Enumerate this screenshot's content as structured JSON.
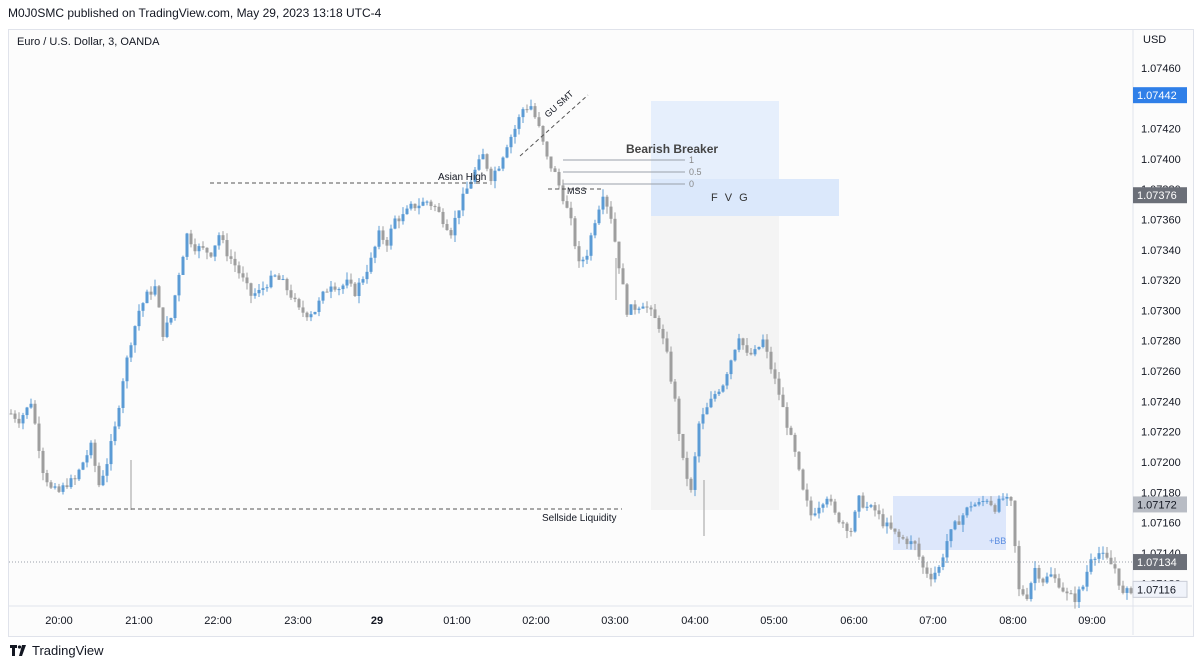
{
  "header": {
    "published": "M0J0SMC published on TradingView.com, May 29, 2023 13:18 UTC-4"
  },
  "symbol": "Euro / U.S. Dollar, 3, OANDA",
  "footer": {
    "brand": "TradingView"
  },
  "colors": {
    "up": "#5b9bd5",
    "down": "#9e9e9e",
    "badge_blue": "#2f7fe8",
    "badge_dark": "#6b6f78",
    "badge_gray": "#b8bcc4",
    "badge_light": "#f0f3fa"
  },
  "chart_data": {
    "type": "candlestick",
    "title": "Euro / U.S. Dollar, 3, OANDA",
    "currency": "USD",
    "xlabel": "",
    "ylabel": "USD",
    "ylim": [
      1.07105,
      1.07485
    ],
    "x_ticks": [
      "20:00",
      "21:00",
      "22:00",
      "23:00",
      "29",
      "01:00",
      "02:00",
      "03:00",
      "04:00",
      "05:00",
      "06:00",
      "07:00",
      "08:00",
      "09:00"
    ],
    "y_ticks": [
      "1.07460",
      "1.07420",
      "1.07400",
      "1.07380",
      "1.07360",
      "1.07340",
      "1.07320",
      "1.07300",
      "1.07280",
      "1.07260",
      "1.07240",
      "1.07220",
      "1.07200",
      "1.07180",
      "1.07160",
      "1.07140",
      "1.07120"
    ],
    "price_badges": [
      {
        "label": "1.07442",
        "value": 1.07442,
        "style": "blue"
      },
      {
        "label": "1.07376",
        "value": 1.07376,
        "style": "dark"
      },
      {
        "label": "1.07172",
        "value": 1.07172,
        "style": "gray"
      },
      {
        "label": "1.07134",
        "value": 1.07134,
        "style": "dark"
      },
      {
        "label": "1.07116",
        "value": 1.07116,
        "style": "light"
      }
    ],
    "series": [
      {
        "close_path": [
          [
            0,
            1.07232
          ],
          [
            2,
            1.07228
          ],
          [
            4,
            1.07235
          ],
          [
            5,
            1.0724
          ],
          [
            6,
            1.07225
          ],
          [
            8,
            1.07195
          ],
          [
            10,
            1.07182
          ],
          [
            12,
            1.0718
          ],
          [
            14,
            1.07186
          ],
          [
            16,
            1.07188
          ],
          [
            18,
            1.072
          ],
          [
            20,
            1.0721
          ],
          [
            22,
            1.07185
          ],
          [
            24,
            1.072
          ],
          [
            26,
            1.07222
          ],
          [
            28,
            1.07255
          ],
          [
            30,
            1.0728
          ],
          [
            32,
            1.073
          ],
          [
            34,
            1.0731
          ],
          [
            36,
            1.07315
          ],
          [
            38,
            1.07285
          ],
          [
            40,
            1.07295
          ],
          [
            42,
            1.07325
          ],
          [
            44,
            1.0735
          ],
          [
            46,
            1.07342
          ],
          [
            48,
            1.0734
          ],
          [
            50,
            1.07338
          ],
          [
            52,
            1.0735
          ],
          [
            54,
            1.07338
          ],
          [
            56,
            1.0733
          ],
          [
            58,
            1.0732
          ],
          [
            60,
            1.0731
          ],
          [
            62,
            1.07312
          ],
          [
            64,
            1.07318
          ],
          [
            66,
            1.07322
          ],
          [
            68,
            1.07318
          ],
          [
            70,
            1.0731
          ],
          [
            72,
            1.073
          ],
          [
            74,
            1.07298
          ],
          [
            76,
            1.073
          ],
          [
            78,
            1.0731
          ],
          [
            80,
            1.07318
          ],
          [
            82,
            1.07315
          ],
          [
            84,
            1.07318
          ],
          [
            86,
            1.07312
          ],
          [
            88,
            1.07322
          ],
          [
            90,
            1.07333
          ],
          [
            92,
            1.0735
          ],
          [
            94,
            1.07345
          ],
          [
            96,
            1.0736
          ],
          [
            98,
            1.07362
          ],
          [
            100,
            1.07368
          ],
          [
            102,
            1.0737
          ],
          [
            104,
            1.07372
          ],
          [
            106,
            1.07368
          ],
          [
            108,
            1.0736
          ],
          [
            110,
            1.07352
          ],
          [
            112,
            1.07368
          ],
          [
            114,
            1.0738
          ],
          [
            116,
            1.07392
          ],
          [
            118,
            1.07402
          ],
          [
            120,
            1.07388
          ],
          [
            122,
            1.07396
          ],
          [
            124,
            1.0741
          ],
          [
            126,
            1.0742
          ],
          [
            128,
            1.07433
          ],
          [
            130,
            1.07435
          ],
          [
            132,
            1.0742
          ],
          [
            134,
            1.074
          ],
          [
            136,
            1.0739
          ],
          [
            138,
            1.07375
          ],
          [
            140,
            1.07358
          ],
          [
            142,
            1.0733
          ],
          [
            144,
            1.07338
          ],
          [
            146,
            1.0736
          ],
          [
            148,
            1.07378
          ],
          [
            150,
            1.07362
          ],
          [
            152,
            1.0733
          ],
          [
            154,
            1.073
          ],
          [
            156,
            1.07302
          ],
          [
            158,
            1.07305
          ],
          [
            160,
            1.07298
          ],
          [
            162,
            1.0729
          ],
          [
            164,
            1.0727
          ],
          [
            166,
            1.0724
          ],
          [
            168,
            1.072
          ],
          [
            170,
            1.0718
          ],
          [
            172,
            1.07225
          ],
          [
            174,
            1.07235
          ],
          [
            176,
            1.07245
          ],
          [
            178,
            1.07252
          ],
          [
            180,
            1.07268
          ],
          [
            182,
            1.07284
          ],
          [
            184,
            1.0727
          ],
          [
            186,
            1.07272
          ],
          [
            188,
            1.0728
          ],
          [
            190,
            1.07262
          ],
          [
            192,
            1.07245
          ],
          [
            194,
            1.07225
          ],
          [
            196,
            1.07205
          ],
          [
            198,
            1.0718
          ],
          [
            200,
            1.07165
          ],
          [
            202,
            1.07172
          ],
          [
            204,
            1.07178
          ],
          [
            206,
            1.07165
          ],
          [
            208,
            1.0716
          ],
          [
            210,
            1.07155
          ],
          [
            212,
            1.07175
          ],
          [
            214,
            1.0717
          ],
          [
            216,
            1.07168
          ],
          [
            218,
            1.0716
          ],
          [
            220,
            1.07155
          ],
          [
            222,
            1.0715
          ],
          [
            224,
            1.07148
          ],
          [
            226,
            1.07145
          ],
          [
            228,
            1.0713
          ],
          [
            230,
            1.07125
          ],
          [
            232,
            1.0713
          ],
          [
            234,
            1.07148
          ],
          [
            236,
            1.07158
          ],
          [
            238,
            1.07165
          ],
          [
            240,
            1.07172
          ],
          [
            242,
            1.07172
          ],
          [
            244,
            1.07176
          ],
          [
            246,
            1.0717
          ],
          [
            248,
            1.07176
          ],
          [
            250,
            1.07172
          ],
          [
            252,
            1.07115
          ],
          [
            254,
            1.07112
          ],
          [
            256,
            1.0713
          ],
          [
            258,
            1.07122
          ],
          [
            260,
            1.07125
          ],
          [
            262,
            1.0712
          ],
          [
            264,
            1.07112
          ],
          [
            266,
            1.0711
          ],
          [
            268,
            1.07118
          ],
          [
            270,
            1.07138
          ],
          [
            272,
            1.0714
          ],
          [
            274,
            1.07135
          ],
          [
            276,
            1.0713
          ],
          [
            278,
            1.07112
          ],
          [
            280,
            1.07116
          ]
        ]
      }
    ],
    "annotations": [
      {
        "text": "Asian High",
        "kind": "level",
        "value": 1.07378
      },
      {
        "text": "Sellside Liquidity",
        "kind": "level",
        "value": 1.07175
      },
      {
        "text": "GU SMT",
        "kind": "divergence"
      },
      {
        "text": "Bearish Breaker",
        "kind": "zone"
      },
      {
        "text": "MSS",
        "kind": "level",
        "value": 1.07375
      },
      {
        "text": "F V G",
        "kind": "zone"
      },
      {
        "text": "+BB",
        "kind": "zone"
      }
    ],
    "fib_levels": [
      {
        "label": "1",
        "value": 1.07402
      },
      {
        "label": "0.5",
        "value": 1.0739
      },
      {
        "label": "0",
        "value": 1.0738
      }
    ]
  }
}
